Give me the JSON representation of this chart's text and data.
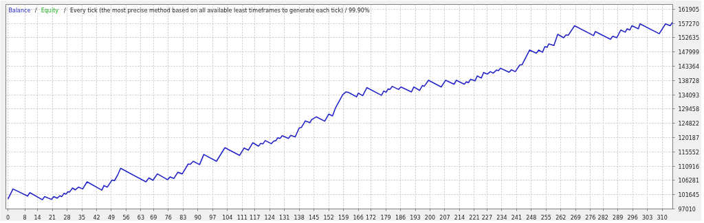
{
  "chart_data": {
    "type": "line",
    "title": "Every tick (the most precise method based on all available least timeframes to generate each tick) / 99.90%",
    "annotations": [
      "/",
      "/"
    ],
    "xlim": [
      -1,
      315
    ],
    "xticks": [
      0,
      8,
      14,
      21,
      28,
      35,
      42,
      49,
      56,
      63,
      69,
      76,
      83,
      90,
      97,
      104,
      111,
      117,
      124,
      131,
      138,
      145,
      152,
      159,
      166,
      172,
      179,
      186,
      193,
      200,
      207,
      214,
      221,
      227,
      234,
      241,
      248,
      255,
      262,
      269,
      276,
      282,
      289,
      296,
      303,
      310
    ],
    "ylim": [
      97010,
      163400
    ],
    "yticks": [
      97010,
      101645,
      106281,
      110916,
      115552,
      120187,
      124822,
      129458,
      134093,
      138728,
      143364,
      147999,
      152635,
      157270,
      161905
    ],
    "grid": true,
    "marker": "none",
    "line_style": "solid",
    "legend": "top left",
    "series": [
      {
        "name": "Balance",
        "color": "#2424c8",
        "x": [
          0,
          2.4,
          9.3,
          10.4,
          16.3,
          17.4,
          20.6,
          21.7,
          23.3,
          24.6,
          25.5,
          26.6,
          27.4,
          28.5,
          29.2,
          30.6,
          31.9,
          33.5,
          35.4,
          37.5,
          44.5,
          45.5,
          47.1,
          49.3,
          50.5,
          52.1,
          53.4,
          65.4,
          66.8,
          68.7,
          70.8,
          75.6,
          76.8,
          78.6,
          80.5,
          82.6,
          85.4,
          86.4,
          87.8,
          90.8,
          92.8,
          98.8,
          102.8,
          109.8,
          111.9,
          113.9,
          116,
          118.7,
          119.8,
          120.8,
          121.9,
          124.8,
          125.9,
          127,
          127.8,
          128.9,
          130,
          132.9,
          134,
          136.1,
          138,
          139.1,
          140.9,
          143.1,
          143.9,
          146.1,
          150.1,
          152,
          153.8,
          155.2,
          158.6,
          160.2,
          161.5,
          165.2,
          166,
          168.1,
          170.1,
          177,
          178.1,
          179.2,
          180.2,
          181,
          182.1,
          185.1,
          186.2,
          191.2,
          192.3,
          195.1,
          196.4,
          197.2,
          199.3,
          205.3,
          207.4,
          211.4,
          212.5,
          216.2,
          217.3,
          218.2,
          219.2,
          221.3,
          222.4,
          224.3,
          225.4,
          227.2,
          228.6,
          229.9,
          231.5,
          232.4,
          233.4,
          237.5,
          238.6,
          240.4,
          242.6,
          243.6,
          247.2,
          250.4,
          251.5,
          253.3,
          254.4,
          255.5,
          256.3,
          258.7,
          260.5,
          263.3,
          264.4,
          265.5,
          268.5,
          277.5,
          278.3,
          285.5,
          286.6,
          288.5,
          290.4,
          292.5,
          293.4,
          294.7,
          295.7,
          298.7,
          299.5,
          308.6,
          311.6,
          313.8,
          314.9
        ],
        "values": [
          100200,
          103500,
          101200,
          102300,
          100000,
          101000,
          100100,
          101000,
          100500,
          101300,
          101000,
          102100,
          101800,
          102600,
          102500,
          103800,
          103200,
          104100,
          103500,
          105800,
          103100,
          104600,
          104100,
          106400,
          106200,
          108200,
          110200,
          105800,
          107100,
          106300,
          108400,
          106500,
          107400,
          106900,
          108900,
          108400,
          111600,
          111500,
          112500,
          111400,
          114700,
          112500,
          116900,
          114400,
          116800,
          116100,
          118500,
          117400,
          118300,
          118100,
          119200,
          118200,
          119000,
          119200,
          120100,
          119900,
          120800,
          119900,
          120900,
          120400,
          123300,
          123500,
          125600,
          125000,
          126000,
          126900,
          125500,
          127800,
          127200,
          129800,
          134100,
          135000,
          134800,
          133400,
          134600,
          133800,
          136400,
          133900,
          135300,
          134900,
          136000,
          135800,
          136800,
          135800,
          136600,
          135000,
          136600,
          135500,
          137100,
          136800,
          138800,
          136600,
          138800,
          137500,
          138800,
          137500,
          138300,
          138000,
          139100,
          138600,
          140200,
          139500,
          141300,
          140800,
          141600,
          141100,
          142100,
          141900,
          142700,
          141400,
          142200,
          141600,
          143800,
          143800,
          148600,
          147600,
          148600,
          147900,
          149700,
          149500,
          150600,
          150100,
          153700,
          152600,
          153500,
          153400,
          156500,
          153300,
          154600,
          152100,
          153100,
          152600,
          155100,
          154400,
          155500,
          155100,
          156500,
          155500,
          157100,
          153900,
          157100,
          156500,
          157600
        ]
      },
      {
        "name": "Equity",
        "color": "#20b020",
        "values": [
          null,
          null
        ]
      }
    ]
  }
}
